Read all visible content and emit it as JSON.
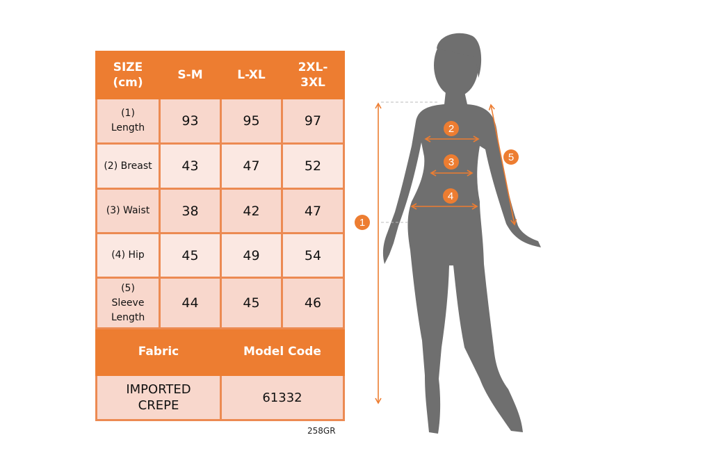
{
  "table": {
    "header": [
      "SIZE (cm)",
      "S-M",
      "L-XL",
      "2XL-3XL"
    ],
    "rows": [
      {
        "label": "(1) Length",
        "values": [
          "93",
          "95",
          "97"
        ]
      },
      {
        "label": "(2) Breast",
        "values": [
          "43",
          "47",
          "52"
        ]
      },
      {
        "label": "(3) Waist",
        "values": [
          "38",
          "42",
          "47"
        ]
      },
      {
        "label": "(4) Hip",
        "values": [
          "45",
          "49",
          "54"
        ]
      },
      {
        "label": "(5) Sleeve Length",
        "values": [
          "44",
          "45",
          "46"
        ]
      }
    ],
    "fabric_label": "Fabric",
    "model_code_label": "Model Code",
    "fabric_value": "IMPORTED CREPE",
    "model_code_value": "61332"
  },
  "product_code": "258GR",
  "figure": {
    "markers": [
      "1",
      "2",
      "3",
      "4",
      "5"
    ]
  },
  "colors": {
    "accent": "#ed7d31",
    "row_dark": "#f8d7cc",
    "row_light": "#fbe8e2",
    "silhouette": "#6f6f6f"
  }
}
